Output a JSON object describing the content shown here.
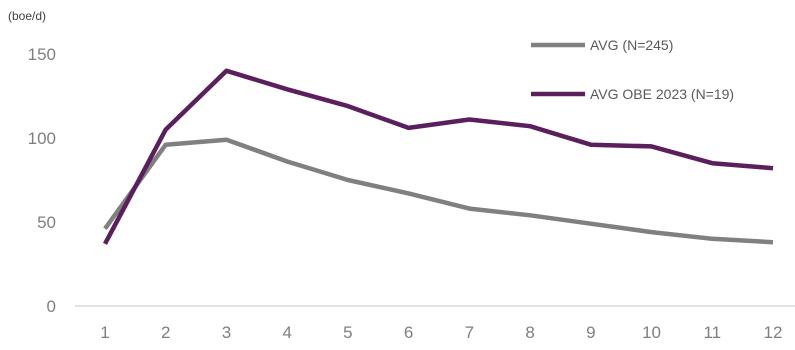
{
  "chart_data": {
    "type": "line",
    "title": "",
    "unit_label": "(boe/d)",
    "x": [
      "1",
      "2",
      "3",
      "4",
      "5",
      "6",
      "7",
      "8",
      "9",
      "10",
      "11",
      "12"
    ],
    "yticks": [
      "0",
      "50",
      "100",
      "150"
    ],
    "ylim": [
      0,
      150
    ],
    "grid": false,
    "legend_position": "top-right",
    "series": [
      {
        "name": "AVG (N=245)",
        "color": "#808080",
        "values": [
          46,
          96,
          99,
          86,
          75,
          67,
          58,
          54,
          49,
          44,
          40,
          38
        ]
      },
      {
        "name": "AVG OBE 2023 (N=19)",
        "color": "#5b1f5d",
        "values": [
          37,
          105,
          140,
          129,
          119,
          106,
          111,
          107,
          96,
          95,
          85,
          82
        ]
      }
    ]
  }
}
